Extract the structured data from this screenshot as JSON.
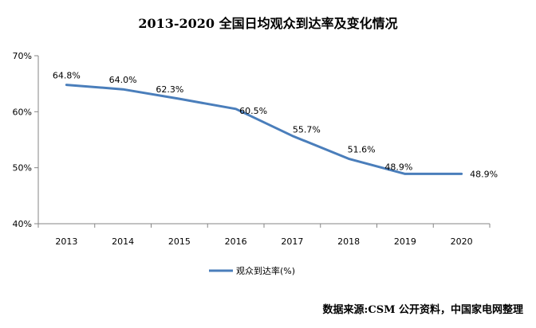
{
  "chart_data": {
    "type": "line",
    "title": "2013-2020 全国日均观众到达率及变化情况",
    "categories": [
      "2013",
      "2014",
      "2015",
      "2016",
      "2017",
      "2018",
      "2019",
      "2020"
    ],
    "series": [
      {
        "name": "观众到达率(%)",
        "values": [
          64.8,
          64.0,
          62.3,
          60.5,
          55.7,
          51.6,
          48.9,
          48.9
        ],
        "labels": [
          "64.8%",
          "64.0%",
          "62.3%",
          "60.5%",
          "55.7%",
          "51.6%",
          "48.9%",
          "48.9%"
        ]
      }
    ],
    "yticks": [
      "40%",
      "50%",
      "60%",
      "70%"
    ],
    "ylim": [
      40,
      70
    ],
    "grid": false,
    "legend": "bottom",
    "colors": {
      "line": "#4a7ebb",
      "axis": "#868686"
    }
  },
  "source": "数据来源:CSM 公开资料，中国家电网整理"
}
